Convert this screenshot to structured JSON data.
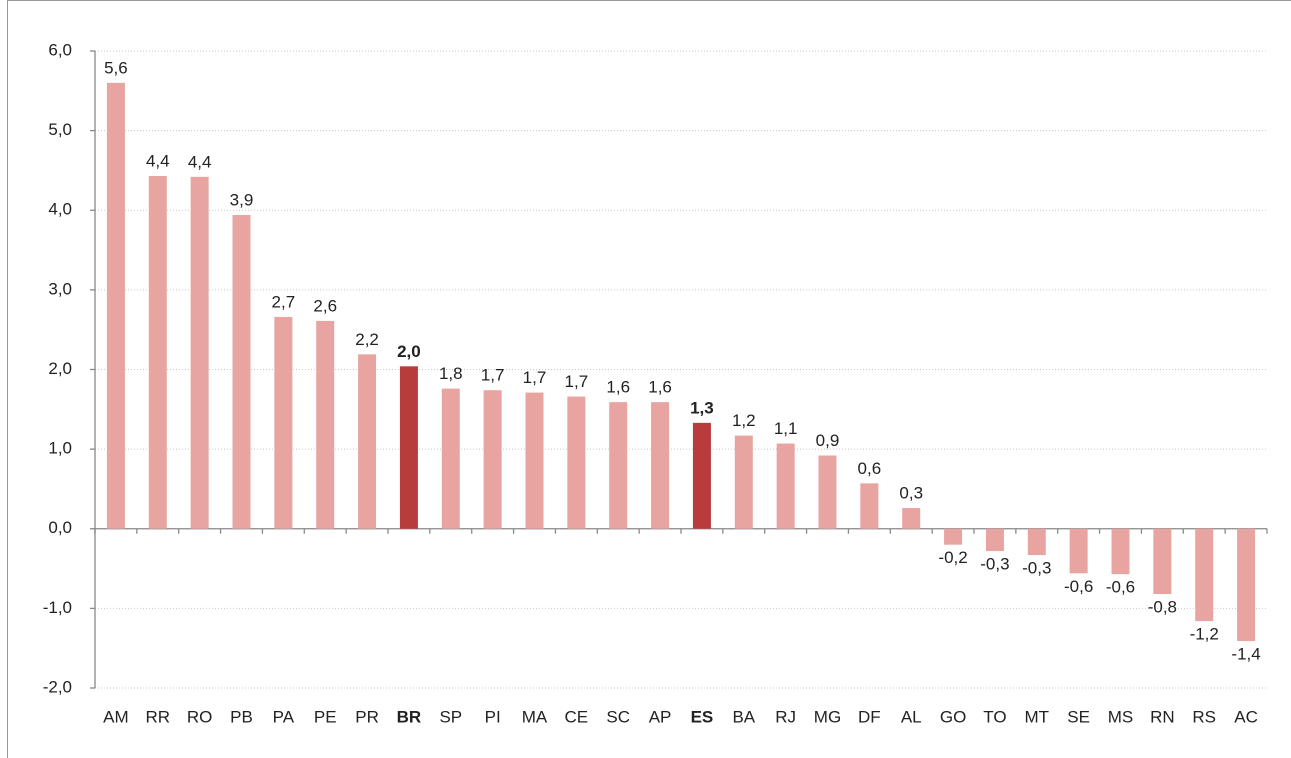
{
  "chart_data": {
    "type": "bar",
    "categories": [
      "AM",
      "RR",
      "RO",
      "PB",
      "PA",
      "PE",
      "PR",
      "BR",
      "SP",
      "PI",
      "MA",
      "CE",
      "SC",
      "AP",
      "ES",
      "BA",
      "RJ",
      "MG",
      "DF",
      "AL",
      "GO",
      "TO",
      "MT",
      "SE",
      "MS",
      "RN",
      "RS",
      "AC"
    ],
    "values": [
      5.6,
      4.43,
      4.42,
      3.94,
      2.66,
      2.61,
      2.19,
      2.04,
      1.76,
      1.74,
      1.71,
      1.66,
      1.59,
      1.59,
      1.33,
      1.17,
      1.07,
      0.92,
      0.57,
      0.26,
      -0.2,
      -0.28,
      -0.33,
      -0.56,
      -0.57,
      -0.82,
      -1.16,
      -1.41
    ],
    "value_labels": [
      "5,6",
      "4,4",
      "4,4",
      "3,9",
      "2,7",
      "2,6",
      "2,2",
      "2,0",
      "1,8",
      "1,7",
      "1,7",
      "1,7",
      "1,6",
      "1,6",
      "1,3",
      "1,2",
      "1,1",
      "0,9",
      "0,6",
      "0,3",
      "-0,2",
      "-0,3",
      "-0,3",
      "-0,6",
      "-0,6",
      "-0,8",
      "-1,2",
      "-1,4"
    ],
    "color": "#e8a4a0",
    "highlight_color": "#b83c3c",
    "highlighted_categories": [
      "BR",
      "ES"
    ],
    "ylim": [
      -2,
      6
    ],
    "yticks": [
      {
        "value": -2,
        "label": "-2,0"
      },
      {
        "value": -1,
        "label": "-1,0"
      },
      {
        "value": 0,
        "label": "0,0"
      },
      {
        "value": 1,
        "label": "1,0"
      },
      {
        "value": 2,
        "label": "2,0"
      },
      {
        "value": 3,
        "label": "3,0"
      },
      {
        "value": 4,
        "label": "4,0"
      },
      {
        "value": 5,
        "label": "5,0"
      },
      {
        "value": 6,
        "label": "6,0"
      }
    ],
    "grid": true
  }
}
